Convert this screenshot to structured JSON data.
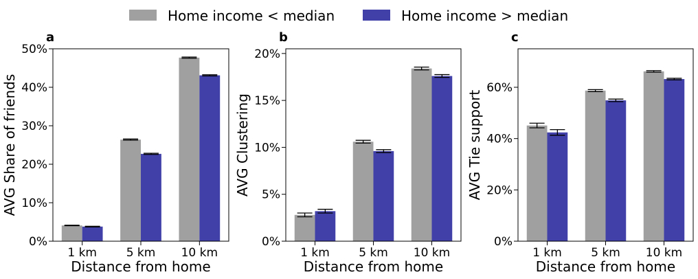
{
  "legend": {
    "placement": "top-center",
    "entries": [
      {
        "label": "Home income < median",
        "color": "#a0a0a0"
      },
      {
        "label": "Home income > median",
        "color": "#4040a8"
      }
    ]
  },
  "chart_data": [
    {
      "type": "bar",
      "panel_label": "a",
      "categories": [
        "1 km",
        "5 km",
        "10 km"
      ],
      "xlabel": "Distance from home",
      "ylabel": "AVG Share of friends",
      "ylim": [
        0,
        0.5
      ],
      "yticks": [
        0,
        0.1,
        0.2,
        0.3,
        0.4,
        0.5
      ],
      "ytick_labels": [
        "0%",
        "10%",
        "20%",
        "30%",
        "40%",
        "50%"
      ],
      "series": [
        {
          "name": "Home income < median",
          "values": [
            0.041,
            0.264,
            0.477
          ],
          "errors": [
            0.0008,
            0.0015,
            0.0015
          ]
        },
        {
          "name": "Home income > median",
          "values": [
            0.038,
            0.227,
            0.431
          ],
          "errors": [
            0.0008,
            0.0015,
            0.0015
          ]
        }
      ]
    },
    {
      "type": "bar",
      "panel_label": "b",
      "categories": [
        "1 km",
        "5 km",
        "10 km"
      ],
      "xlabel": "Distance from home",
      "ylabel": "AVG Clustering",
      "ylim": [
        0,
        0.205
      ],
      "yticks": [
        0,
        0.05,
        0.1,
        0.15,
        0.2
      ],
      "ytick_labels": [
        "0%",
        "5%",
        "10%",
        "15%",
        "20%"
      ],
      "series": [
        {
          "name": "Home income < median",
          "values": [
            0.028,
            0.106,
            0.184
          ],
          "errors": [
            0.002,
            0.0015,
            0.0015
          ]
        },
        {
          "name": "Home income > median",
          "values": [
            0.032,
            0.096,
            0.176
          ],
          "errors": [
            0.002,
            0.0015,
            0.0015
          ]
        }
      ]
    },
    {
      "type": "bar",
      "panel_label": "c",
      "categories": [
        "1 km",
        "5 km",
        "10 km"
      ],
      "xlabel": "Distance from home",
      "ylabel": "AVG Tie support",
      "ylim": [
        0,
        0.75
      ],
      "yticks": [
        0,
        0.2,
        0.4,
        0.6
      ],
      "ytick_labels": [
        "0%",
        "20%",
        "40%",
        "60%"
      ],
      "series": [
        {
          "name": "Home income < median",
          "values": [
            0.451,
            0.587,
            0.662
          ],
          "errors": [
            0.009,
            0.004,
            0.003
          ]
        },
        {
          "name": "Home income > median",
          "values": [
            0.424,
            0.549,
            0.632
          ],
          "errors": [
            0.011,
            0.005,
            0.003
          ]
        }
      ]
    }
  ]
}
